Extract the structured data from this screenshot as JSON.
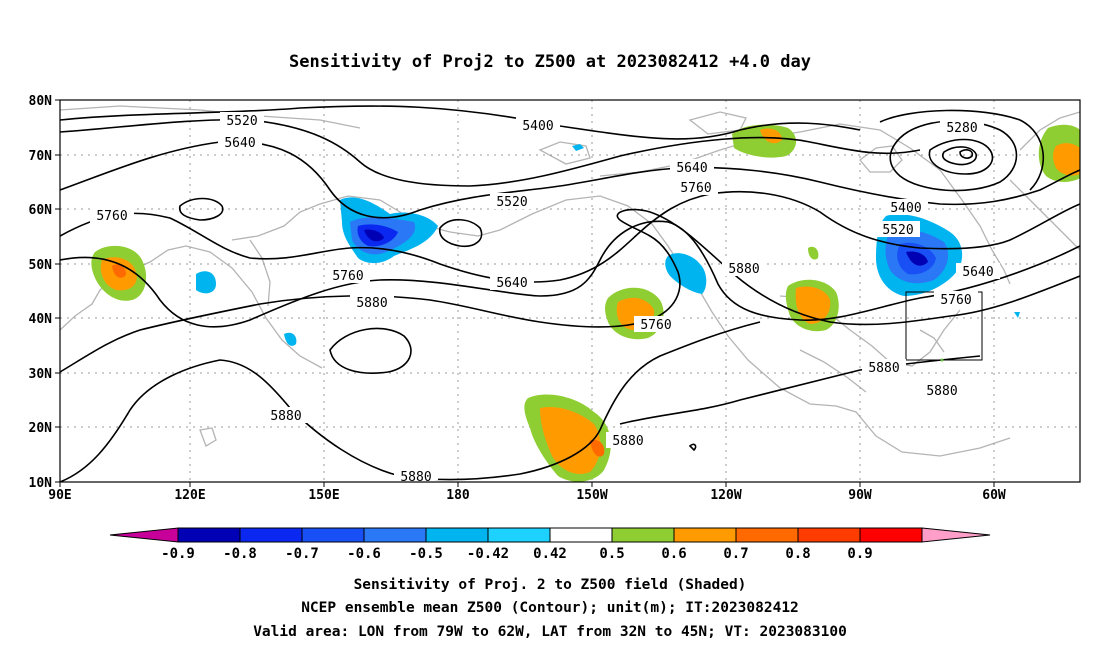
{
  "title": "Sensitivity of Proj2 to Z500 at 2023082412 +4.0 day",
  "map": {
    "lon_labels": [
      "90E",
      "120E",
      "150E",
      "180",
      "150W",
      "120W",
      "90W",
      "60W"
    ],
    "lat_labels": [
      "80N",
      "70N",
      "60N",
      "50N",
      "40N",
      "30N",
      "20N",
      "10N"
    ],
    "contour_labels": [
      "5520",
      "5640",
      "5760",
      "5400",
      "5520",
      "5640",
      "5760",
      "5880",
      "5760",
      "5880",
      "5640",
      "5760",
      "5880",
      "5280",
      "5400",
      "5520",
      "5640",
      "5760",
      "5880",
      "5880",
      "5880",
      "5880"
    ]
  },
  "colorbar": {
    "ticks": [
      "-0.9",
      "-0.8",
      "-0.7",
      "-0.6",
      "-0.5",
      "-0.42",
      "0.42",
      "0.5",
      "0.6",
      "0.7",
      "0.8",
      "0.9"
    ],
    "colors": [
      "#c8009a",
      "#0000b4",
      "#0a28f0",
      "#1950f5",
      "#2a78f5",
      "#00b4f0",
      "#1ed2ff",
      "#ffffff",
      "#8fce32",
      "#ff9b00",
      "#ff6a00",
      "#ff3c00",
      "#ff0000",
      "#ff9ec8"
    ]
  },
  "footer": {
    "line1": "Sensitivity of Proj. 2 to Z500 field (Shaded)",
    "line2": "NCEP ensemble mean Z500 (Contour); unit(m); IT:2023082412",
    "line3": "Valid area: LON from 79W to 62W, LAT from 32N to 45N; VT: 2023083100"
  }
}
